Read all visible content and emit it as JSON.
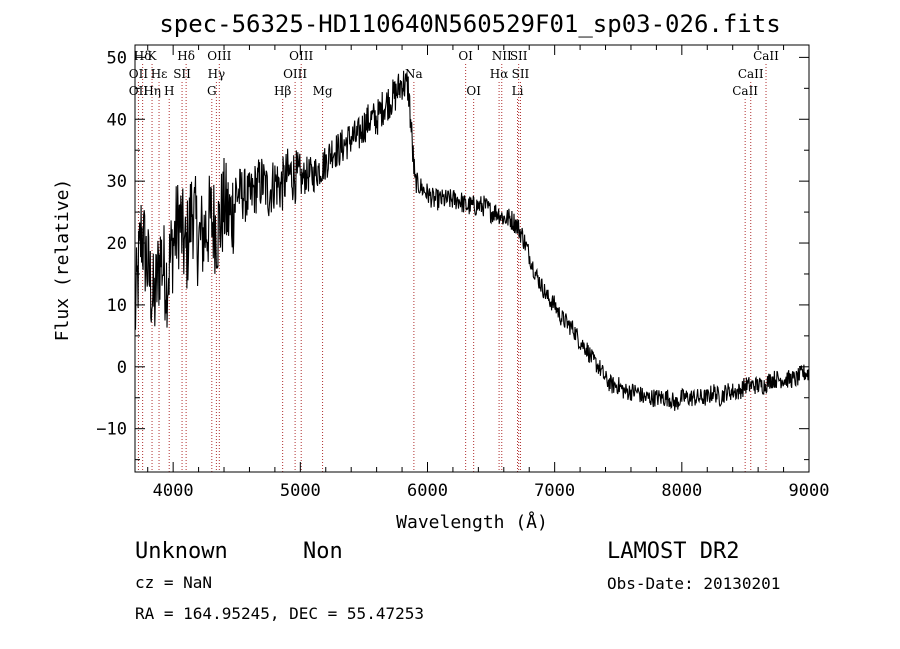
{
  "chart_data": {
    "type": "line",
    "title": "spec-56325-HD110640N560529F01_sp03-026.fits",
    "xlabel": "Wavelength (Å)",
    "ylabel": "Flux (relative)",
    "xlim": [
      3700,
      9000
    ],
    "ylim": [
      -17,
      52
    ],
    "xticks": [
      4000,
      5000,
      6000,
      7000,
      8000,
      9000
    ],
    "yticks": [
      -10,
      0,
      10,
      20,
      30,
      40,
      50
    ],
    "grid": false,
    "series": [
      {
        "x": [
          3700,
          3750,
          3800,
          3850,
          3900,
          3950,
          4000,
          4050,
          4100,
          4150,
          4200,
          4250,
          4300,
          4350,
          4400,
          4450,
          4500,
          4550,
          4600,
          4650,
          4700,
          4750,
          4800,
          4850,
          4900,
          4950,
          5000,
          5050,
          5100,
          5150,
          5200,
          5250,
          5300,
          5350,
          5400,
          5450,
          5500,
          5550,
          5600,
          5650,
          5700,
          5750,
          5800,
          5850,
          5900,
          5950,
          6000,
          6050,
          6100,
          6150,
          6200,
          6250,
          6300,
          6350,
          6400,
          6450,
          6500,
          6550,
          6600,
          6650,
          6700,
          6750,
          6800,
          6850,
          6900,
          6950,
          7000,
          7050,
          7100,
          7150,
          7200,
          7250,
          7300,
          7350,
          7400,
          7450,
          7500,
          7550,
          7600,
          7650,
          7700,
          7750,
          7800,
          7850,
          7900,
          7950,
          8000,
          8050,
          8100,
          8150,
          8200,
          8250,
          8300,
          8350,
          8400,
          8450,
          8500,
          8550,
          8600,
          8650,
          8700,
          8750,
          8800,
          8850,
          8900,
          8950,
          9000
        ],
        "y": [
          8,
          22,
          16,
          10,
          18,
          14,
          20,
          24,
          18,
          26,
          20,
          22,
          24,
          22,
          26,
          24,
          28,
          28,
          27,
          29,
          30,
          28,
          30,
          29,
          31,
          31,
          30,
          31,
          31,
          32,
          33,
          35,
          35,
          36,
          37,
          37,
          39,
          40,
          40,
          42,
          43,
          44,
          46,
          45,
          30,
          29,
          28,
          27,
          27,
          27,
          27,
          27,
          26,
          26,
          26,
          26,
          25,
          25,
          24,
          24,
          23,
          21,
          18,
          15,
          13,
          11,
          10,
          8,
          7,
          6,
          4,
          3,
          1,
          0,
          -2,
          -3,
          -3,
          -4,
          -4,
          -4,
          -5,
          -5,
          -5,
          -5,
          -5,
          -6,
          -5,
          -5,
          -5,
          -5,
          -5,
          -4,
          -5,
          -4,
          -4,
          -4,
          -3,
          -3,
          -3,
          -3,
          -2,
          -2,
          -2,
          -2,
          -2,
          -1,
          -1
        ]
      }
    ],
    "spectral_lines": [
      {
        "label": "Hδ",
        "x": 3760,
        "row": 0
      },
      {
        "label": "K",
        "x": 3834,
        "row": 0
      },
      {
        "label": "Hδ",
        "x": 4102,
        "row": 0
      },
      {
        "label": "OIII",
        "x": 4363,
        "row": 0
      },
      {
        "label": "OIII",
        "x": 5007,
        "row": 0
      },
      {
        "label": "OI",
        "x": 6300,
        "row": 0
      },
      {
        "label": "NII",
        "x": 6584,
        "row": 0
      },
      {
        "label": "SII",
        "x": 6717,
        "row": 0
      },
      {
        "label": "CaII",
        "x": 8662,
        "row": 0
      },
      {
        "label": "OII",
        "x": 3727,
        "row": 1
      },
      {
        "label": "Hε",
        "x": 3889,
        "row": 1
      },
      {
        "label": "SII",
        "x": 4070,
        "row": 1
      },
      {
        "label": "Hγ",
        "x": 4340,
        "row": 1
      },
      {
        "label": "OIII",
        "x": 4959,
        "row": 1
      },
      {
        "label": "Na",
        "x": 5893,
        "row": 1
      },
      {
        "label": "Hα",
        "x": 6563,
        "row": 1
      },
      {
        "label": "SII",
        "x": 6731,
        "row": 1
      },
      {
        "label": "CaII",
        "x": 8542,
        "row": 1
      },
      {
        "label": "OII",
        "x": 3727,
        "row": 2
      },
      {
        "label": "Hη",
        "x": 3835,
        "row": 2
      },
      {
        "label": "H",
        "x": 3969,
        "row": 2
      },
      {
        "label": "G",
        "x": 4304,
        "row": 2
      },
      {
        "label": "Hβ",
        "x": 4861,
        "row": 2
      },
      {
        "label": "Mg",
        "x": 5175,
        "row": 2
      },
      {
        "label": "OI",
        "x": 6363,
        "row": 2
      },
      {
        "label": "Li",
        "x": 6708,
        "row": 2
      },
      {
        "label": "CaII",
        "x": 8498,
        "row": 2
      }
    ]
  },
  "info": {
    "class": "Unknown",
    "subclass": "Non",
    "cz": "cz = NaN",
    "coords": "RA = 164.95245, DEC =  55.47253",
    "survey": "LAMOST DR2",
    "obs_date": "Obs-Date: 20130201"
  }
}
